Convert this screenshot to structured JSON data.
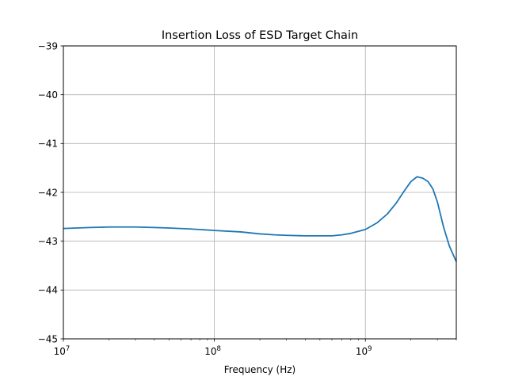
{
  "chart_data": {
    "type": "line",
    "title": "Insertion Loss of ESD Target Chain",
    "xlabel": "Frequency (Hz)",
    "ylabel": "",
    "xscale": "log",
    "xlim": [
      10000000,
      4000000000
    ],
    "ylim": [
      -45,
      -39
    ],
    "grid": true,
    "legend": "none",
    "x_ticks": [
      {
        "value": 10000000,
        "base": "10",
        "exp": "7"
      },
      {
        "value": 100000000,
        "base": "10",
        "exp": "8"
      },
      {
        "value": 1000000000,
        "base": "10",
        "exp": "9"
      }
    ],
    "y_ticks": [
      {
        "value": -45,
        "label": "−45"
      },
      {
        "value": -44,
        "label": "−44"
      },
      {
        "value": -43,
        "label": "−43"
      },
      {
        "value": -42,
        "label": "−42"
      },
      {
        "value": -41,
        "label": "−41"
      },
      {
        "value": -40,
        "label": "−40"
      },
      {
        "value": -39,
        "label": "−39"
      }
    ],
    "series": [
      {
        "color": "#1f77b4",
        "x": [
          10000000,
          15000000,
          20000000,
          25000000,
          30000000,
          40000000,
          50000000,
          70000000,
          100000000,
          150000000,
          200000000,
          250000000,
          300000000,
          400000000,
          500000000,
          600000000,
          700000000,
          800000000,
          1000000000,
          1200000000,
          1400000000,
          1600000000,
          1800000000,
          2000000000,
          2200000000,
          2400000000,
          2600000000,
          2800000000,
          3000000000,
          3300000000,
          3600000000,
          4000000000
        ],
        "y": [
          -42.74,
          -42.72,
          -42.71,
          -42.71,
          -42.71,
          -42.72,
          -42.73,
          -42.75,
          -42.78,
          -42.81,
          -42.85,
          -42.87,
          -42.88,
          -42.89,
          -42.89,
          -42.89,
          -42.87,
          -42.84,
          -42.76,
          -42.62,
          -42.44,
          -42.22,
          -41.98,
          -41.78,
          -41.68,
          -41.71,
          -41.78,
          -41.93,
          -42.2,
          -42.72,
          -43.1,
          -43.42
        ]
      }
    ]
  }
}
